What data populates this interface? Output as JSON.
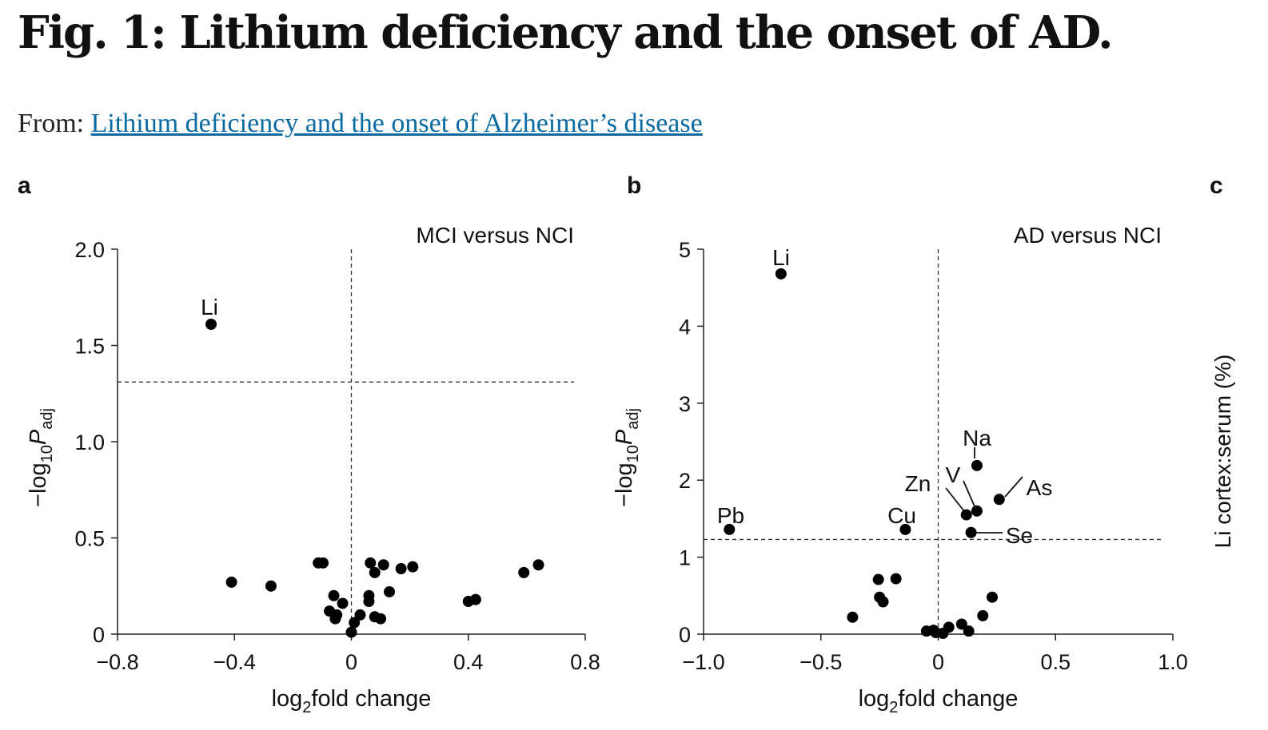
{
  "title": "Fig. 1: Lithium deficiency and the onset of AD.",
  "from_label": "From:",
  "from_link": "Lithium deficiency and the onset of Alzheimer’s disease",
  "panels": {
    "a": "a",
    "b": "b",
    "c": "c"
  },
  "panel_c_ylabel": "Li cortex:serum (%)",
  "chart_data": [
    {
      "type": "scatter",
      "title": "MCI versus NCI",
      "xlabel": "log2fold change",
      "ylabel": "−log10Padj",
      "xlim": [
        -0.8,
        0.8
      ],
      "ylim": [
        0,
        2.0
      ],
      "xticks": [
        "−0.8",
        "−0.4",
        "0",
        "0.4",
        "0.8"
      ],
      "xtick_values": [
        -0.8,
        -0.4,
        0,
        0.4,
        0.8
      ],
      "yticks": [
        "0",
        "0.5",
        "1.0",
        "1.5",
        "2.0"
      ],
      "ytick_values": [
        0,
        0.5,
        1.0,
        1.5,
        2.0
      ],
      "threshold_y": 1.31,
      "threshold_x": 0,
      "points": [
        [
          -0.48,
          1.61,
          "Li"
        ],
        [
          -0.41,
          0.27
        ],
        [
          -0.275,
          0.25
        ],
        [
          -0.113,
          0.37
        ],
        [
          -0.097,
          0.37
        ],
        [
          0.065,
          0.37
        ],
        [
          0.11,
          0.36
        ],
        [
          0.08,
          0.32
        ],
        [
          0.17,
          0.34
        ],
        [
          0.21,
          0.35
        ],
        [
          0.59,
          0.32
        ],
        [
          0.64,
          0.36
        ],
        [
          0.4,
          0.17
        ],
        [
          0.425,
          0.18
        ],
        [
          0.13,
          0.22
        ],
        [
          0.06,
          0.2
        ],
        [
          0.06,
          0.17
        ],
        [
          -0.06,
          0.2
        ],
        [
          -0.03,
          0.16
        ],
        [
          -0.075,
          0.12
        ],
        [
          -0.05,
          0.1
        ],
        [
          0.01,
          0.06
        ],
        [
          0.03,
          0.1
        ],
        [
          -0.055,
          0.08
        ],
        [
          0.08,
          0.09
        ],
        [
          0.1,
          0.08
        ],
        [
          0,
          0.01
        ]
      ]
    },
    {
      "type": "scatter",
      "title": "AD versus NCI",
      "xlabel": "log2fold change",
      "ylabel": "−log10Padj",
      "xlim": [
        -1.0,
        1.0
      ],
      "ylim": [
        0,
        5
      ],
      "xticks": [
        "−1.0",
        "−0.5",
        "0",
        "0.5",
        "1.0"
      ],
      "xtick_values": [
        -1,
        -0.5,
        0,
        0.5,
        1
      ],
      "yticks": [
        "0",
        "1",
        "2",
        "3",
        "4",
        "5"
      ],
      "ytick_values": [
        0,
        1,
        2,
        3,
        4,
        5
      ],
      "threshold_y": 1.23,
      "threshold_x": 0,
      "points": [
        [
          -0.67,
          4.68,
          "Li"
        ],
        [
          -0.89,
          1.36,
          "Pb"
        ],
        [
          -0.14,
          1.36,
          "Cu"
        ],
        [
          0.165,
          2.19,
          "Na"
        ],
        [
          0.26,
          1.75,
          "As"
        ],
        [
          0.12,
          1.55,
          "Zn"
        ],
        [
          0.165,
          1.6,
          "V"
        ],
        [
          0.14,
          1.32,
          "Se"
        ],
        [
          -0.255,
          0.71
        ],
        [
          -0.18,
          0.72
        ],
        [
          -0.25,
          0.48
        ],
        [
          -0.235,
          0.42
        ],
        [
          -0.365,
          0.22
        ],
        [
          0.23,
          0.48
        ],
        [
          0.19,
          0.24
        ],
        [
          0.1,
          0.13
        ],
        [
          0.045,
          0.09
        ],
        [
          0.13,
          0.04
        ],
        [
          -0.05,
          0.04
        ],
        [
          -0.02,
          0.05
        ],
        [
          -0.01,
          0.02
        ],
        [
          0.02,
          0.01
        ]
      ]
    }
  ]
}
